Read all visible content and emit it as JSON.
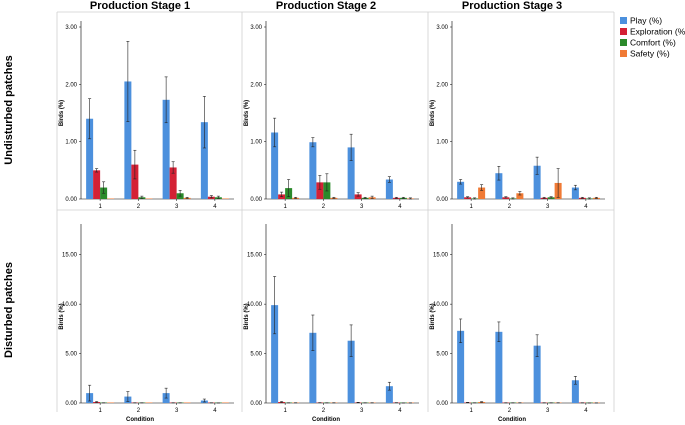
{
  "chart_data": {
    "type": "bar",
    "column_titles": [
      "Production Stage 1",
      "Production Stage 2",
      "Production Stage 3"
    ],
    "row_titles": [
      "Undisturbed patches",
      "Disturbed patches"
    ],
    "xlabel": "Condition",
    "ylabel": "Birds (%)",
    "categories": [
      "1",
      "2",
      "3",
      "4"
    ],
    "legend": [
      {
        "name": "Play (%)",
        "color": "#4c90dd"
      },
      {
        "name": "Exploration (%)",
        "color": "#d42135"
      },
      {
        "name": "Comfort (%)",
        "color": "#2b8a2b"
      },
      {
        "name": "Safety (%)",
        "color": "#f07a35"
      }
    ],
    "rows": [
      {
        "ylim": [
          0,
          3
        ],
        "yticks": [
          "0.00",
          "1.00",
          "2.00",
          "3.00"
        ],
        "panels": [
          {
            "series": [
              {
                "name": "Play (%)",
                "values": [
                  1.4,
                  2.05,
                  1.73,
                  1.34
                ],
                "errors": [
                  0.35,
                  0.7,
                  0.4,
                  0.45
                ]
              },
              {
                "name": "Exploration (%)",
                "values": [
                  0.5,
                  0.6,
                  0.55,
                  0.04
                ],
                "errors": [
                  0.03,
                  0.25,
                  0.1,
                  0.02
                ]
              },
              {
                "name": "Comfort (%)",
                "values": [
                  0.2,
                  0.03,
                  0.1,
                  0.03
                ],
                "errors": [
                  0.1,
                  0.02,
                  0.05,
                  0.02
                ]
              },
              {
                "name": "Safety (%)",
                "values": [
                  0.0,
                  0.0,
                  0.02,
                  0.0
                ],
                "errors": [
                  0,
                  0,
                  0.01,
                  0
                ]
              }
            ]
          },
          {
            "series": [
              {
                "name": "Play (%)",
                "values": [
                  1.16,
                  0.99,
                  0.9,
                  0.34
                ],
                "errors": [
                  0.25,
                  0.08,
                  0.23,
                  0.05
                ]
              },
              {
                "name": "Exploration (%)",
                "values": [
                  0.08,
                  0.29,
                  0.08,
                  0.02
                ],
                "errors": [
                  0.04,
                  0.12,
                  0.03,
                  0.01
                ]
              },
              {
                "name": "Comfort (%)",
                "values": [
                  0.19,
                  0.29,
                  0.02,
                  0.02
                ],
                "errors": [
                  0.15,
                  0.15,
                  0.01,
                  0.01
                ]
              },
              {
                "name": "Safety (%)",
                "values": [
                  0.02,
                  0.02,
                  0.03,
                  0.01
                ],
                "errors": [
                  0.01,
                  0.01,
                  0.02,
                  0.01
                ]
              }
            ]
          },
          {
            "series": [
              {
                "name": "Play (%)",
                "values": [
                  0.3,
                  0.45,
                  0.58,
                  0.2
                ],
                "errors": [
                  0.04,
                  0.12,
                  0.15,
                  0.04
                ]
              },
              {
                "name": "Exploration (%)",
                "values": [
                  0.03,
                  0.03,
                  0.02,
                  0.02
                ],
                "errors": [
                  0.01,
                  0.01,
                  0.01,
                  0.01
                ]
              },
              {
                "name": "Comfort (%)",
                "values": [
                  0.01,
                  0.01,
                  0.03,
                  0.01
                ],
                "errors": [
                  0.01,
                  0.01,
                  0.01,
                  0.01
                ]
              },
              {
                "name": "Safety (%)",
                "values": [
                  0.2,
                  0.1,
                  0.28,
                  0.02
                ],
                "errors": [
                  0.05,
                  0.03,
                  0.25,
                  0.01
                ]
              }
            ]
          }
        ]
      },
      {
        "ylim": [
          0,
          17.5
        ],
        "yticks": [
          "0.00",
          "5.00",
          "10.00",
          "15.00"
        ],
        "panels": [
          {
            "series": [
              {
                "name": "Play (%)",
                "values": [
                  1.0,
                  0.65,
                  1.0,
                  0.25
                ],
                "errors": [
                  0.8,
                  0.5,
                  0.5,
                  0.15
                ]
              },
              {
                "name": "Exploration (%)",
                "values": [
                  0.1,
                  0.02,
                  0.02,
                  0.02
                ],
                "errors": [
                  0.05,
                  0.01,
                  0.01,
                  0.01
                ]
              },
              {
                "name": "Comfort (%)",
                "values": [
                  0.02,
                  0.02,
                  0.02,
                  0.01
                ],
                "errors": [
                  0.01,
                  0.01,
                  0.01,
                  0.01
                ]
              },
              {
                "name": "Safety (%)",
                "values": [
                  0.0,
                  0.0,
                  0.0,
                  0.0
                ],
                "errors": [
                  0,
                  0,
                  0,
                  0
                ]
              }
            ]
          },
          {
            "series": [
              {
                "name": "Play (%)",
                "values": [
                  9.9,
                  7.1,
                  6.3,
                  1.7
                ],
                "errors": [
                  2.9,
                  1.8,
                  1.6,
                  0.4
                ]
              },
              {
                "name": "Exploration (%)",
                "values": [
                  0.1,
                  0.03,
                  0.05,
                  0.03
                ],
                "errors": [
                  0.05,
                  0.01,
                  0.02,
                  0.01
                ]
              },
              {
                "name": "Comfort (%)",
                "values": [
                  0.02,
                  0.02,
                  0.02,
                  0.01
                ],
                "errors": [
                  0.01,
                  0.01,
                  0.01,
                  0.01
                ]
              },
              {
                "name": "Safety (%)",
                "values": [
                  0.02,
                  0.02,
                  0.02,
                  0.01
                ],
                "errors": [
                  0.01,
                  0.01,
                  0.01,
                  0.01
                ]
              }
            ]
          },
          {
            "series": [
              {
                "name": "Play (%)",
                "values": [
                  7.3,
                  7.2,
                  5.8,
                  2.3
                ],
                "errors": [
                  1.2,
                  1.0,
                  1.1,
                  0.4
                ]
              },
              {
                "name": "Exploration (%)",
                "values": [
                  0.05,
                  0.02,
                  0.02,
                  0.02
                ],
                "errors": [
                  0.02,
                  0.01,
                  0.01,
                  0.01
                ]
              },
              {
                "name": "Comfort (%)",
                "values": [
                  0.02,
                  0.02,
                  0.02,
                  0.01
                ],
                "errors": [
                  0.01,
                  0.01,
                  0.01,
                  0.01
                ]
              },
              {
                "name": "Safety (%)",
                "values": [
                  0.1,
                  0.02,
                  0.02,
                  0.01
                ],
                "errors": [
                  0.04,
                  0.01,
                  0.01,
                  0.01
                ]
              }
            ]
          }
        ]
      }
    ]
  }
}
